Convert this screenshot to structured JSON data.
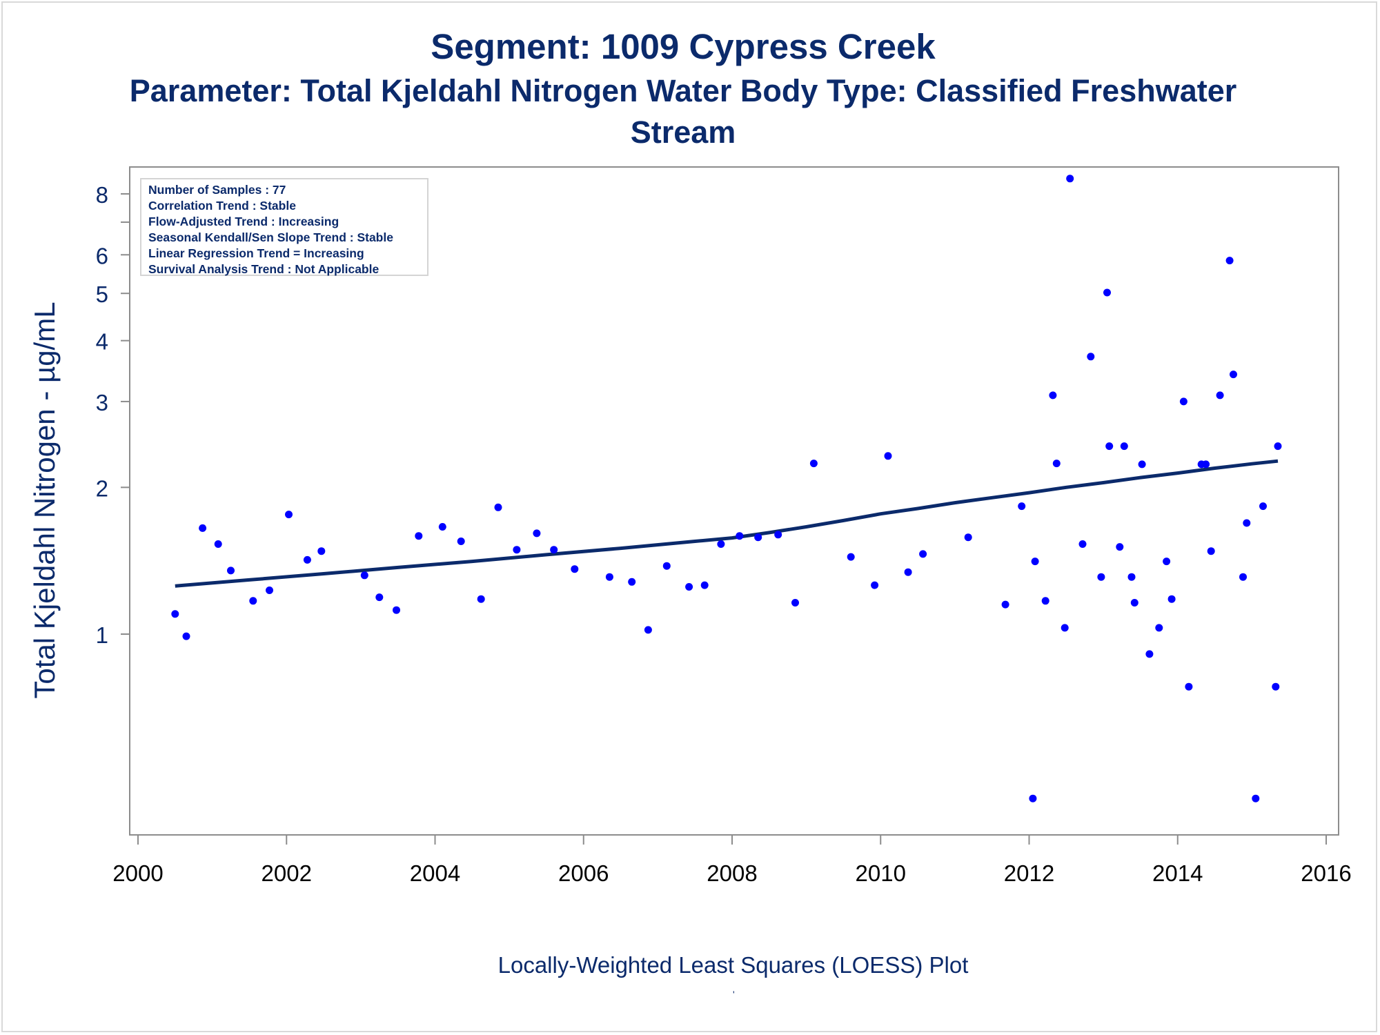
{
  "chart_data": {
    "type": "scatter",
    "title": "Segment: 1009  Cypress Creek",
    "subtitle_line1": "Parameter: Total Kjeldahl Nitrogen   Water Body Type: Classified Freshwater",
    "subtitle_line2": "Stream",
    "ylabel": "Total Kjeldahl Nitrogen -  µg/mL",
    "xlabel": "Locally-Weighted Least Squares (LOESS) Plot",
    "footnote_mark": "'",
    "y_scale": "log",
    "xlim": [
      2000,
      2016
    ],
    "ylim": [
      0.45,
      8.9
    ],
    "x_ticks": [
      "2000",
      "2002",
      "2004",
      "2006",
      "2008",
      "2010",
      "2012",
      "2014",
      "2016"
    ],
    "y_ticks": [
      "1",
      "2",
      "3",
      "4",
      "5",
      "6",
      "8"
    ],
    "y_tick_values": [
      1,
      2,
      3,
      4,
      5,
      6,
      8
    ],
    "y_minor_ticks": [
      7
    ],
    "stats_box": [
      "Number of Samples : 77",
      "Correlation Trend : Stable",
      "Flow-Adjusted Trend : Increasing",
      "Seasonal Kendall/Sen Slope Trend : Stable",
      "Linear Regression Trend = Increasing",
      "Survival Analysis Trend : Not Applicable"
    ],
    "colors": {
      "points": "#0000ff",
      "trend": "#0b2a6b",
      "text": "#0b2a6b",
      "axis": "#8c8c8c"
    },
    "points": [
      [
        2000.5,
        1.1
      ],
      [
        2000.65,
        0.99
      ],
      [
        2000.87,
        1.65
      ],
      [
        2001.08,
        1.53
      ],
      [
        2001.25,
        1.35
      ],
      [
        2001.55,
        1.17
      ],
      [
        2001.77,
        1.23
      ],
      [
        2002.03,
        1.76
      ],
      [
        2002.28,
        1.42
      ],
      [
        2002.47,
        1.48
      ],
      [
        2003.05,
        1.32
      ],
      [
        2003.25,
        1.19
      ],
      [
        2003.48,
        1.12
      ],
      [
        2003.78,
        1.59
      ],
      [
        2004.1,
        1.66
      ],
      [
        2004.35,
        1.55
      ],
      [
        2004.62,
        1.18
      ],
      [
        2004.85,
        1.82
      ],
      [
        2005.1,
        1.49
      ],
      [
        2005.37,
        1.61
      ],
      [
        2005.6,
        1.49
      ],
      [
        2005.88,
        1.36
      ],
      [
        2006.35,
        1.31
      ],
      [
        2006.65,
        1.28
      ],
      [
        2006.87,
        1.02
      ],
      [
        2007.12,
        1.38
      ],
      [
        2007.42,
        1.25
      ],
      [
        2007.63,
        1.26
      ],
      [
        2007.85,
        1.53
      ],
      [
        2008.1,
        1.59
      ],
      [
        2008.35,
        1.58
      ],
      [
        2008.62,
        1.6
      ],
      [
        2008.85,
        1.16
      ],
      [
        2009.1,
        2.24
      ],
      [
        2009.6,
        1.44
      ],
      [
        2009.92,
        1.26
      ],
      [
        2010.1,
        2.32
      ],
      [
        2010.37,
        1.34
      ],
      [
        2010.57,
        1.46
      ],
      [
        2011.18,
        1.58
      ],
      [
        2011.68,
        1.15
      ],
      [
        2011.9,
        1.83
      ],
      [
        2012.05,
        0.46
      ],
      [
        2012.08,
        1.41
      ],
      [
        2012.22,
        1.17
      ],
      [
        2012.32,
        3.09
      ],
      [
        2012.37,
        2.24
      ],
      [
        2012.48,
        1.03
      ],
      [
        2012.55,
        8.6
      ],
      [
        2012.72,
        1.53
      ],
      [
        2012.83,
        3.71
      ],
      [
        2012.97,
        1.31
      ],
      [
        2013.05,
        5.02
      ],
      [
        2013.08,
        2.43
      ],
      [
        2013.22,
        1.51
      ],
      [
        2013.28,
        2.43
      ],
      [
        2013.38,
        1.31
      ],
      [
        2013.42,
        1.16
      ],
      [
        2013.52,
        2.23
      ],
      [
        2013.62,
        0.91
      ],
      [
        2013.75,
        1.03
      ],
      [
        2013.85,
        1.41
      ],
      [
        2013.92,
        1.18
      ],
      [
        2014.08,
        3.0
      ],
      [
        2014.15,
        0.78
      ],
      [
        2014.32,
        2.23
      ],
      [
        2014.38,
        2.23
      ],
      [
        2014.45,
        1.48
      ],
      [
        2014.57,
        3.09
      ],
      [
        2014.7,
        5.84
      ],
      [
        2014.75,
        3.41
      ],
      [
        2014.88,
        1.31
      ],
      [
        2014.93,
        1.69
      ],
      [
        2015.05,
        0.46
      ],
      [
        2015.15,
        1.83
      ],
      [
        2015.32,
        0.78
      ],
      [
        2015.35,
        2.43
      ]
    ],
    "trend_line": [
      [
        2000.5,
        1.255
      ],
      [
        2001.5,
        1.292
      ],
      [
        2002.5,
        1.33
      ],
      [
        2003.5,
        1.37
      ],
      [
        2004.5,
        1.41
      ],
      [
        2005.5,
        1.455
      ],
      [
        2006.5,
        1.5
      ],
      [
        2007.5,
        1.55
      ],
      [
        2008.0,
        1.575
      ],
      [
        2008.5,
        1.615
      ],
      [
        2009.0,
        1.66
      ],
      [
        2009.5,
        1.71
      ],
      [
        2010.0,
        1.765
      ],
      [
        2010.5,
        1.81
      ],
      [
        2011.0,
        1.86
      ],
      [
        2011.5,
        1.905
      ],
      [
        2012.0,
        1.95
      ],
      [
        2012.5,
        2.0
      ],
      [
        2013.0,
        2.045
      ],
      [
        2013.5,
        2.095
      ],
      [
        2014.0,
        2.14
      ],
      [
        2014.5,
        2.19
      ],
      [
        2015.0,
        2.235
      ],
      [
        2015.35,
        2.265
      ]
    ]
  }
}
